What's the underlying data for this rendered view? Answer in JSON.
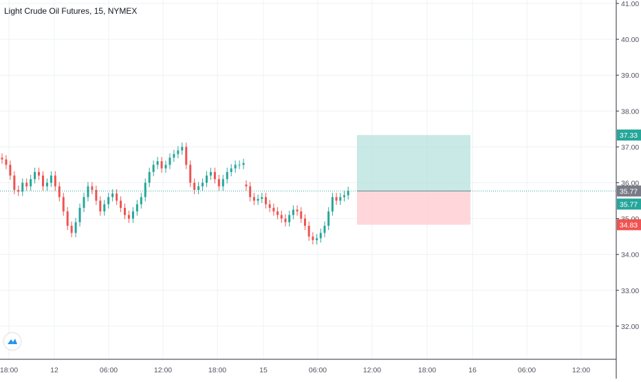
{
  "title": "Light Crude Oil Futures, 15, NYMEX",
  "colors": {
    "up": "#26a69a",
    "down": "#ef5350",
    "grid": "#eef0f3",
    "axis_text": "#50535e",
    "price_line": "#26a69a",
    "target_zone": "#b2dfdb",
    "stop_zone": "#ffcdd2",
    "last_price_label": "#787b86",
    "logo": "#2196f3"
  },
  "icons": {
    "logo": "tradingview-logo-icon"
  },
  "chart_data": {
    "type": "candlestick",
    "title": "Light Crude Oil Futures, 15, NYMEX",
    "grid": true,
    "ylim": [
      31.0,
      41.0
    ],
    "y_ticks": [
      32.0,
      33.0,
      34.0,
      35.0,
      36.0,
      37.0,
      38.0,
      39.0,
      40.0,
      41.0
    ],
    "y_tick_labels": [
      "32.00",
      "33.00",
      "34.00",
      "35.00",
      "36.00",
      "37.00",
      "38.00",
      "39.00",
      "40.00",
      "41.00"
    ],
    "x_tick_labels": [
      "18:00",
      "12",
      "06:00",
      "12:00",
      "18:00",
      "15",
      "06:00",
      "12:00",
      "18:00",
      "16",
      "06:00",
      "12:00"
    ],
    "session_1_closes": [
      36.65,
      36.5,
      36.2,
      35.8,
      35.75,
      36.0,
      35.9,
      36.1,
      36.3,
      36.2,
      35.9,
      36.0,
      36.2,
      35.9,
      35.6,
      35.2,
      34.8,
      34.6,
      34.9,
      35.3,
      35.6,
      35.9,
      35.8,
      35.5,
      35.2,
      35.4,
      35.6,
      35.7,
      35.5,
      35.3,
      35.1,
      35.0,
      35.2,
      35.4,
      35.6,
      36.0,
      36.3,
      36.5,
      36.6,
      36.4,
      36.5,
      36.7,
      36.8,
      36.9,
      37.0,
      36.5,
      36.0,
      35.8,
      35.9,
      36.0,
      36.2,
      36.3,
      36.1,
      35.9,
      36.1,
      36.3,
      36.4,
      36.5,
      36.5,
      36.55
    ],
    "session_2_closes": [
      35.9,
      35.6,
      35.5,
      35.55,
      35.6,
      35.4,
      35.3,
      35.2,
      35.1,
      35.0,
      34.9,
      35.1,
      35.25,
      35.2,
      35.0,
      34.8,
      34.5,
      34.4,
      34.45,
      34.6,
      34.8,
      35.2,
      35.6,
      35.5,
      35.6,
      35.65,
      35.77
    ],
    "last_price": 35.77,
    "entry_price": 35.77,
    "target_price": 37.33,
    "stop_price": 34.83,
    "price_labels": [
      "37.33",
      "35.77",
      "35.77",
      "34.83"
    ]
  }
}
